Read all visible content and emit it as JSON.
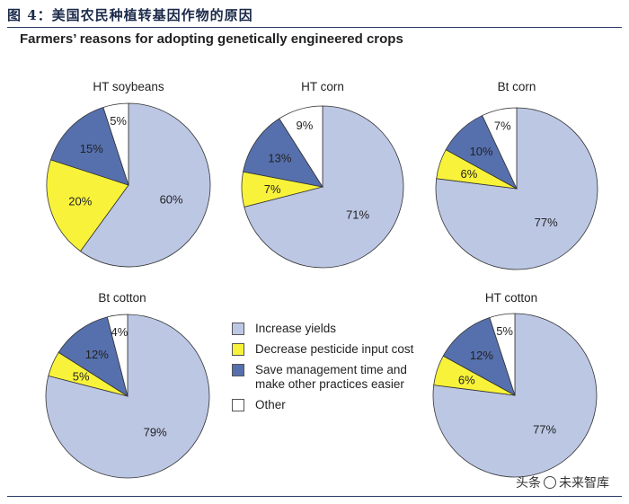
{
  "figure_title": "图 4：美国农民种植转基因作物的原因",
  "subtitle": "Farmers’ reasons for adopting genetically engineered crops",
  "colors": {
    "increase_yields": "#bcc7e4",
    "decrease_pesticide": "#f8f33a",
    "save_management": "#5670ad",
    "other": "#ffffff"
  },
  "legend": [
    {
      "key": "increase_yields",
      "label": "Increase yields"
    },
    {
      "key": "decrease_pesticide",
      "label": "Decrease pesticide input cost"
    },
    {
      "key": "save_management",
      "label": "Save management time and\nmake other practices easier"
    },
    {
      "key": "other",
      "label": "Other"
    }
  ],
  "chart_data": [
    {
      "type": "pie",
      "title": "HT soybeans",
      "categories": [
        "Increase yields",
        "Decrease pesticide input cost",
        "Save management time and make other practices easier",
        "Other"
      ],
      "values": [
        60,
        20,
        15,
        5
      ],
      "labels": [
        "60%",
        "20%",
        "15%",
        "5%"
      ]
    },
    {
      "type": "pie",
      "title": "HT corn",
      "categories": [
        "Increase yields",
        "Decrease pesticide input cost",
        "Save management time and make other practices easier",
        "Other"
      ],
      "values": [
        71,
        7,
        13,
        9
      ],
      "labels": [
        "71%",
        "7%",
        "13%",
        "9%"
      ]
    },
    {
      "type": "pie",
      "title": "Bt corn",
      "categories": [
        "Increase yields",
        "Decrease pesticide input cost",
        "Save management time and make other practices easier",
        "Other"
      ],
      "values": [
        77,
        6,
        10,
        7
      ],
      "labels": [
        "77%",
        "6%",
        "10%",
        "7%"
      ]
    },
    {
      "type": "pie",
      "title": "Bt cotton",
      "categories": [
        "Increase yields",
        "Decrease pesticide input cost",
        "Save management time and make other practices easier",
        "Other"
      ],
      "values": [
        79,
        5,
        12,
        4
      ],
      "labels": [
        "79%",
        "5%",
        "12%",
        "4%"
      ]
    },
    {
      "type": "pie",
      "title": "HT cotton",
      "categories": [
        "Increase yields",
        "Decrease pesticide input cost",
        "Save management time and make other practices easier",
        "Other"
      ],
      "values": [
        77,
        6,
        12,
        5
      ],
      "labels": [
        "77%",
        "6%",
        "12%",
        "5%"
      ]
    }
  ],
  "watermark": {
    "prefix": "头条",
    "suffix": "未来智库"
  }
}
